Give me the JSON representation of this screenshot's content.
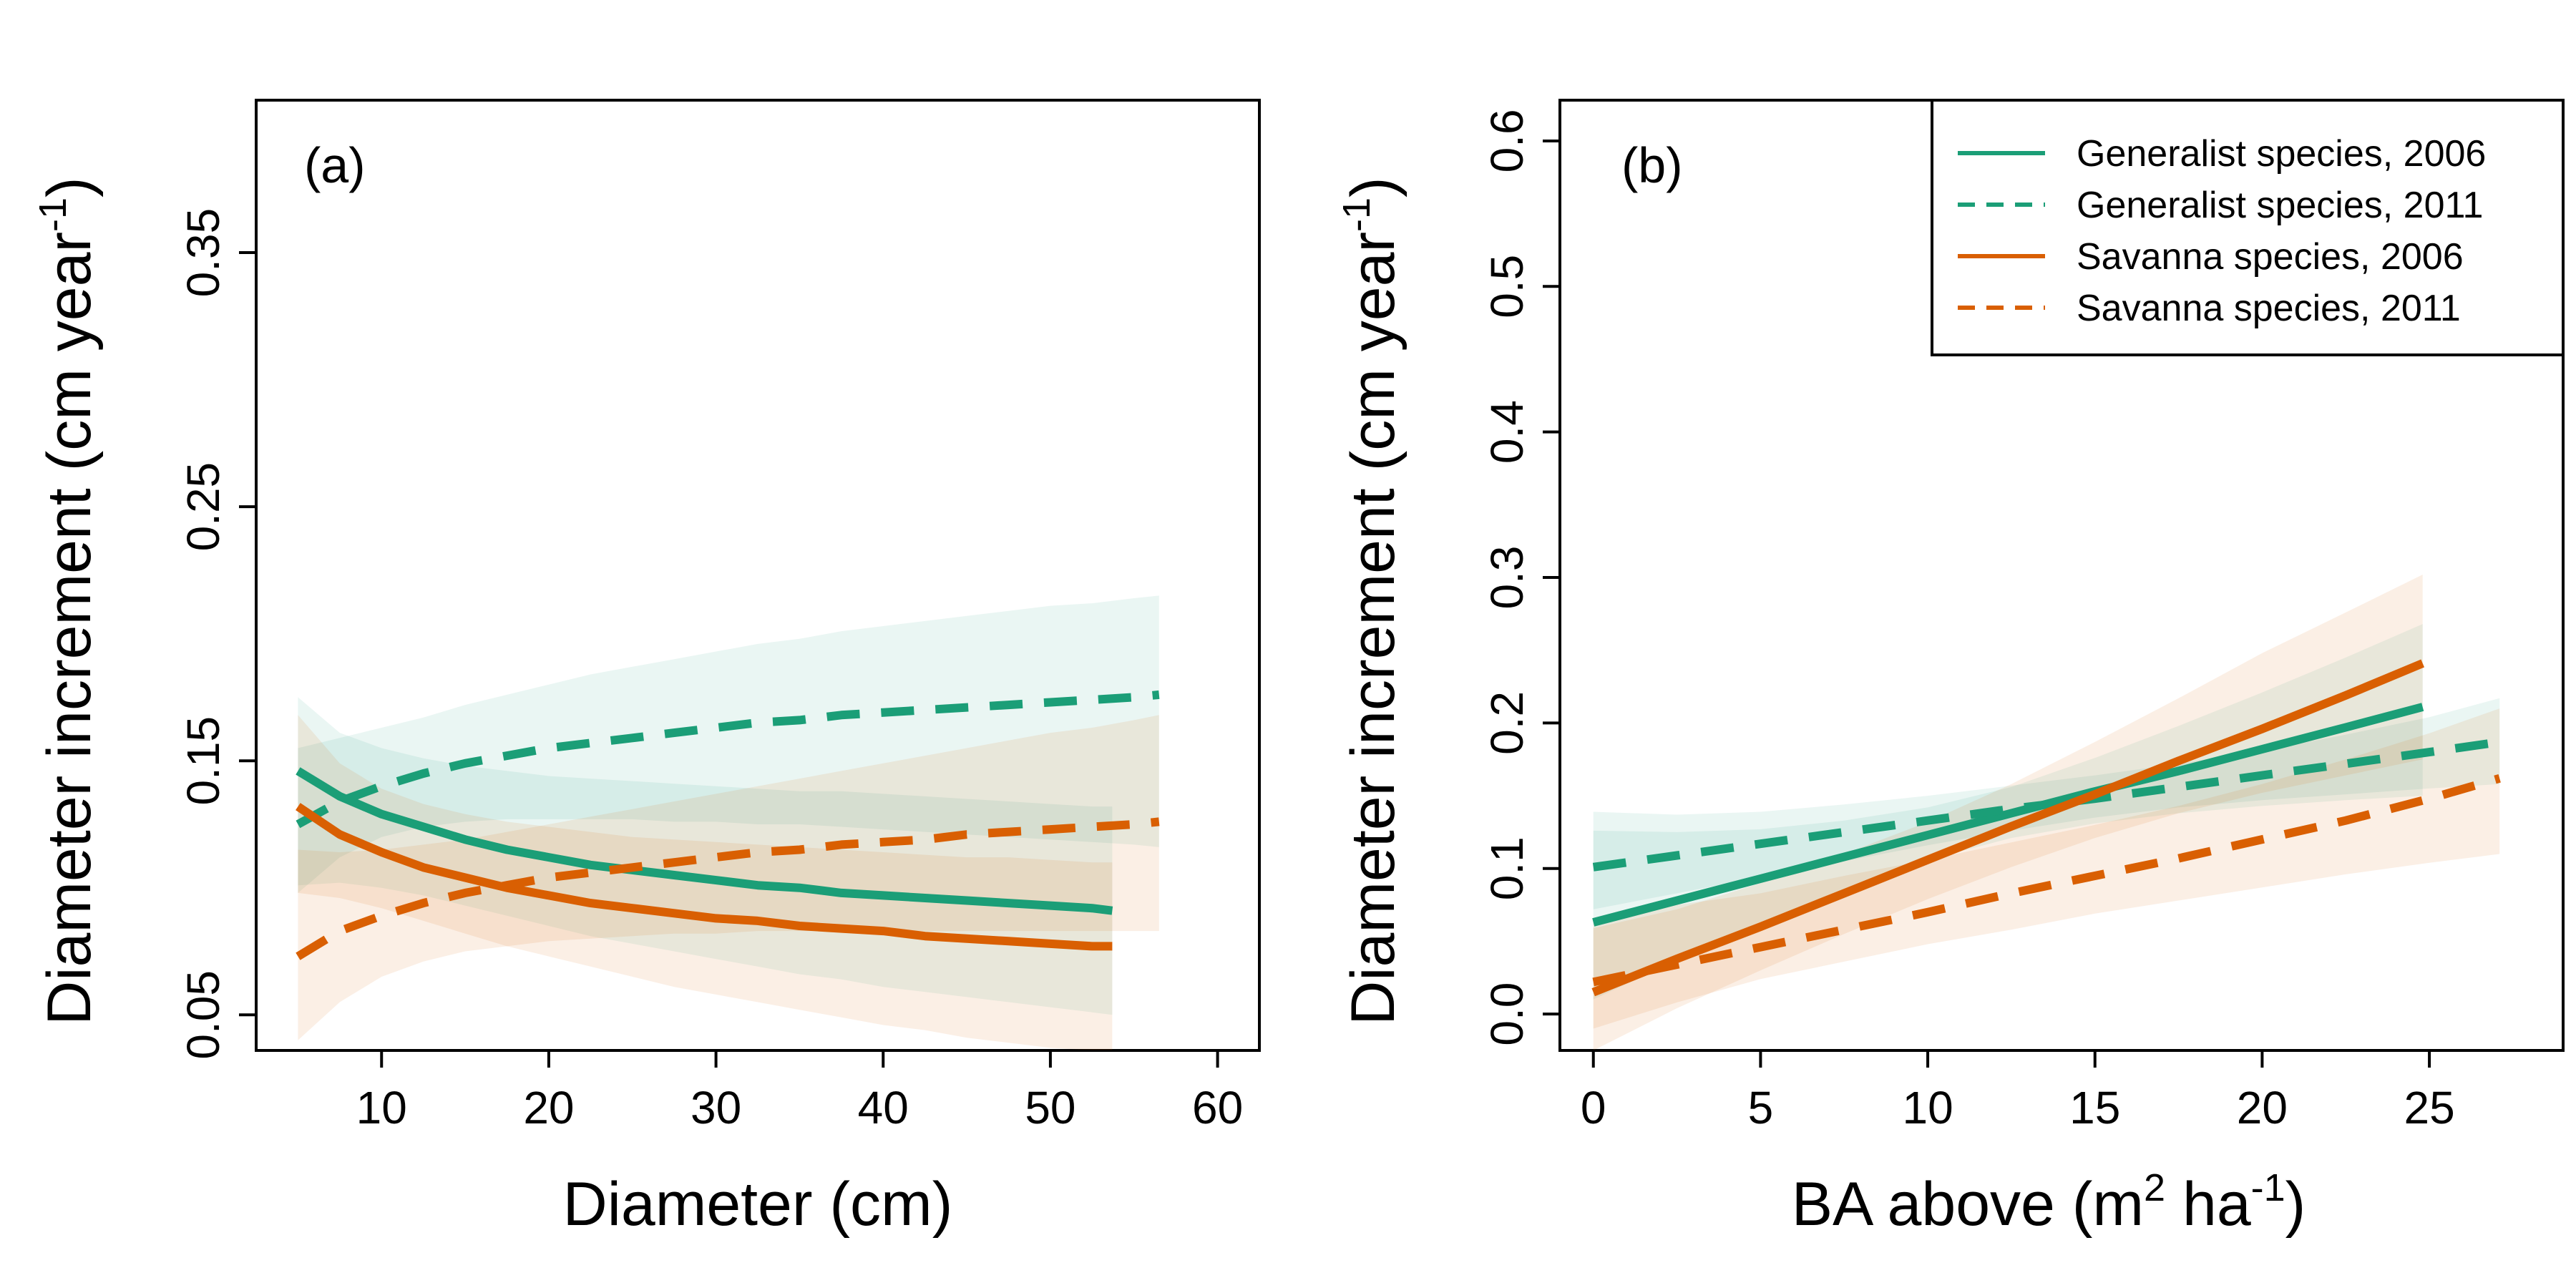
{
  "colors": {
    "generalist": "#1b9e77",
    "savanna": "#d95f02"
  },
  "chart_data": [
    {
      "type": "line",
      "panel_label": "(a)",
      "xlabel": "Diameter (cm)",
      "ylabel": "Diameter increment (cm year",
      "ylabel_sup": "-1",
      "ylabel_close": ")",
      "xlim": [
        2.5,
        62.5
      ],
      "ylim": [
        0.036,
        0.41
      ],
      "xticks": [
        10,
        20,
        30,
        40,
        50,
        60
      ],
      "yticks": [
        0.05,
        0.15,
        0.25,
        0.35
      ],
      "ytick_labels": [
        "0.05",
        "0.15",
        "0.25",
        "0.35"
      ],
      "grid": false,
      "series": [
        {
          "name": "Generalist species, 2006",
          "group": "generalist",
          "dash": false,
          "x": [
            5,
            7.5,
            10,
            12.5,
            15,
            17.5,
            20,
            22.5,
            25,
            27.5,
            30,
            32.5,
            35,
            37.5,
            40,
            42.5,
            45,
            47.5,
            50,
            52.5,
            53.7
          ],
          "y": [
            0.146,
            0.136,
            0.129,
            0.124,
            0.119,
            0.115,
            0.112,
            0.109,
            0.107,
            0.105,
            0.103,
            0.101,
            0.1,
            0.098,
            0.097,
            0.096,
            0.095,
            0.094,
            0.093,
            0.092,
            0.091
          ],
          "lower": [
            0.101,
            0.102,
            0.1,
            0.097,
            0.093,
            0.089,
            0.085,
            0.081,
            0.078,
            0.075,
            0.072,
            0.069,
            0.066,
            0.064,
            0.061,
            0.059,
            0.057,
            0.055,
            0.053,
            0.051,
            0.05
          ],
          "upper": [
            0.175,
            0.161,
            0.155,
            0.151,
            0.148,
            0.146,
            0.144,
            0.143,
            0.142,
            0.141,
            0.14,
            0.139,
            0.138,
            0.138,
            0.137,
            0.136,
            0.135,
            0.134,
            0.133,
            0.132,
            0.132
          ]
        },
        {
          "name": "Generalist species, 2011",
          "group": "generalist",
          "dash": true,
          "x": [
            5,
            7.5,
            10,
            12.5,
            15,
            17.5,
            20,
            22.5,
            25,
            27.5,
            30,
            32.5,
            35,
            37.5,
            40,
            42.5,
            45,
            47.5,
            50,
            52.5,
            55,
            56.5
          ],
          "y": [
            0.125,
            0.134,
            0.14,
            0.145,
            0.149,
            0.152,
            0.155,
            0.157,
            0.159,
            0.161,
            0.163,
            0.165,
            0.166,
            0.168,
            0.169,
            0.17,
            0.171,
            0.172,
            0.173,
            0.174,
            0.175,
            0.176
          ],
          "lower": [
            0.098,
            0.112,
            0.12,
            0.124,
            0.126,
            0.127,
            0.127,
            0.127,
            0.127,
            0.126,
            0.126,
            0.125,
            0.125,
            0.124,
            0.123,
            0.122,
            0.121,
            0.12,
            0.119,
            0.118,
            0.117,
            0.116
          ],
          "upper": [
            0.155,
            0.159,
            0.163,
            0.167,
            0.172,
            0.176,
            0.18,
            0.184,
            0.187,
            0.19,
            0.193,
            0.196,
            0.198,
            0.201,
            0.203,
            0.205,
            0.207,
            0.209,
            0.211,
            0.212,
            0.214,
            0.215
          ]
        },
        {
          "name": "Savanna species, 2006",
          "group": "savanna",
          "dash": false,
          "x": [
            5,
            7.5,
            10,
            12.5,
            15,
            17.5,
            20,
            22.5,
            25,
            27.5,
            30,
            32.5,
            35,
            37.5,
            40,
            42.5,
            45,
            47.5,
            50,
            52.5,
            53.7
          ],
          "y": [
            0.132,
            0.121,
            0.114,
            0.108,
            0.104,
            0.1,
            0.097,
            0.094,
            0.092,
            0.09,
            0.088,
            0.087,
            0.085,
            0.084,
            0.083,
            0.081,
            0.08,
            0.079,
            0.078,
            0.077,
            0.077
          ],
          "lower": [
            0.098,
            0.096,
            0.092,
            0.087,
            0.082,
            0.077,
            0.073,
            0.069,
            0.065,
            0.061,
            0.058,
            0.055,
            0.052,
            0.049,
            0.046,
            0.044,
            0.041,
            0.039,
            0.037,
            0.035,
            0.035
          ],
          "upper": [
            0.168,
            0.149,
            0.139,
            0.133,
            0.129,
            0.126,
            0.124,
            0.122,
            0.12,
            0.119,
            0.118,
            0.117,
            0.116,
            0.115,
            0.114,
            0.113,
            0.112,
            0.112,
            0.111,
            0.11,
            0.11
          ]
        },
        {
          "name": "Savanna species, 2011",
          "group": "savanna",
          "dash": true,
          "x": [
            5,
            7.5,
            10,
            12.5,
            15,
            17.5,
            20,
            22.5,
            25,
            27.5,
            30,
            32.5,
            35,
            37.5,
            40,
            42.5,
            45,
            47.5,
            50,
            52.5,
            55,
            56.5
          ],
          "y": [
            0.073,
            0.083,
            0.089,
            0.094,
            0.098,
            0.101,
            0.104,
            0.106,
            0.108,
            0.11,
            0.112,
            0.114,
            0.115,
            0.117,
            0.118,
            0.119,
            0.121,
            0.122,
            0.123,
            0.124,
            0.125,
            0.126
          ],
          "lower": [
            0.04,
            0.055,
            0.065,
            0.071,
            0.075,
            0.077,
            0.079,
            0.08,
            0.081,
            0.082,
            0.082,
            0.083,
            0.083,
            0.083,
            0.083,
            0.083,
            0.083,
            0.083,
            0.083,
            0.083,
            0.083,
            0.083
          ],
          "upper": [
            0.115,
            0.114,
            0.115,
            0.117,
            0.119,
            0.122,
            0.125,
            0.128,
            0.131,
            0.134,
            0.137,
            0.14,
            0.143,
            0.146,
            0.149,
            0.152,
            0.155,
            0.158,
            0.161,
            0.163,
            0.166,
            0.168
          ]
        }
      ]
    },
    {
      "type": "line",
      "panel_label": "(b)",
      "xlabel": "BA above (m",
      "xlabel_sup": "2",
      "xlabel_mid": " ha",
      "xlabel_sup2": "-1",
      "xlabel_close": ")",
      "ylabel": "Diameter increment (cm year",
      "ylabel_sup": "-1",
      "ylabel_close": ")",
      "xlim": [
        -1,
        29
      ],
      "ylim": [
        -0.025,
        0.628
      ],
      "xticks": [
        0,
        5,
        10,
        15,
        20,
        25
      ],
      "yticks": [
        0.0,
        0.1,
        0.2,
        0.3,
        0.4,
        0.5,
        0.6
      ],
      "ytick_labels": [
        "0.0",
        "0.1",
        "0.2",
        "0.3",
        "0.4",
        "0.5",
        "0.6"
      ],
      "grid": false,
      "legend": {
        "position": "top-right",
        "entries": [
          "Generalist species, 2006",
          "Generalist species, 2011",
          "Savanna species, 2006",
          "Savanna species, 2011"
        ]
      },
      "series": [
        {
          "name": "Generalist species, 2006",
          "group": "generalist",
          "dash": false,
          "x": [
            0,
            2.5,
            5,
            7.5,
            10,
            12.5,
            15,
            17.5,
            20,
            22.5,
            24.8
          ],
          "y": [
            0.063,
            0.078,
            0.093,
            0.108,
            0.123,
            0.138,
            0.153,
            0.167,
            0.182,
            0.197,
            0.211
          ],
          "lower": [
            0.01,
            0.037,
            0.063,
            0.086,
            0.106,
            0.121,
            0.131,
            0.138,
            0.143,
            0.147,
            0.15
          ],
          "upper": [
            0.126,
            0.125,
            0.127,
            0.133,
            0.142,
            0.156,
            0.176,
            0.198,
            0.221,
            0.245,
            0.268
          ]
        },
        {
          "name": "Generalist species, 2011",
          "group": "generalist",
          "dash": true,
          "x": [
            0,
            2.5,
            5,
            7.5,
            10,
            12.5,
            15,
            17.5,
            20,
            22.5,
            25,
            27.1
          ],
          "y": [
            0.101,
            0.109,
            0.117,
            0.125,
            0.133,
            0.141,
            0.148,
            0.156,
            0.164,
            0.172,
            0.18,
            0.187
          ],
          "lower": [
            0.072,
            0.083,
            0.094,
            0.105,
            0.116,
            0.126,
            0.135,
            0.142,
            0.147,
            0.151,
            0.155,
            0.158
          ],
          "upper": [
            0.139,
            0.137,
            0.139,
            0.144,
            0.15,
            0.157,
            0.164,
            0.172,
            0.181,
            0.192,
            0.204,
            0.217
          ]
        },
        {
          "name": "Savanna species, 2006",
          "group": "savanna",
          "dash": false,
          "x": [
            0,
            2.5,
            5,
            7.5,
            10,
            12.5,
            15,
            17.5,
            20,
            22.5,
            24.8
          ],
          "y": [
            0.015,
            0.038,
            0.06,
            0.083,
            0.106,
            0.129,
            0.151,
            0.174,
            0.196,
            0.219,
            0.241
          ],
          "lower": [
            -0.025,
            0.004,
            0.03,
            0.055,
            0.079,
            0.101,
            0.121,
            0.138,
            0.152,
            0.164,
            0.175
          ],
          "upper": [
            0.059,
            0.072,
            0.09,
            0.11,
            0.132,
            0.158,
            0.187,
            0.217,
            0.248,
            0.276,
            0.302
          ]
        },
        {
          "name": "Savanna species, 2011",
          "group": "savanna",
          "dash": true,
          "x": [
            0,
            2.5,
            5,
            7.5,
            10,
            12.5,
            15,
            17.5,
            20,
            22.5,
            25,
            27.1
          ],
          "y": [
            0.022,
            0.034,
            0.046,
            0.058,
            0.07,
            0.083,
            0.095,
            0.107,
            0.12,
            0.133,
            0.148,
            0.162
          ],
          "lower": [
            -0.01,
            0.008,
            0.024,
            0.036,
            0.048,
            0.058,
            0.069,
            0.078,
            0.087,
            0.096,
            0.104,
            0.11
          ],
          "upper": [
            0.066,
            0.075,
            0.083,
            0.095,
            0.106,
            0.118,
            0.13,
            0.143,
            0.158,
            0.175,
            0.193,
            0.21
          ]
        }
      ]
    }
  ]
}
